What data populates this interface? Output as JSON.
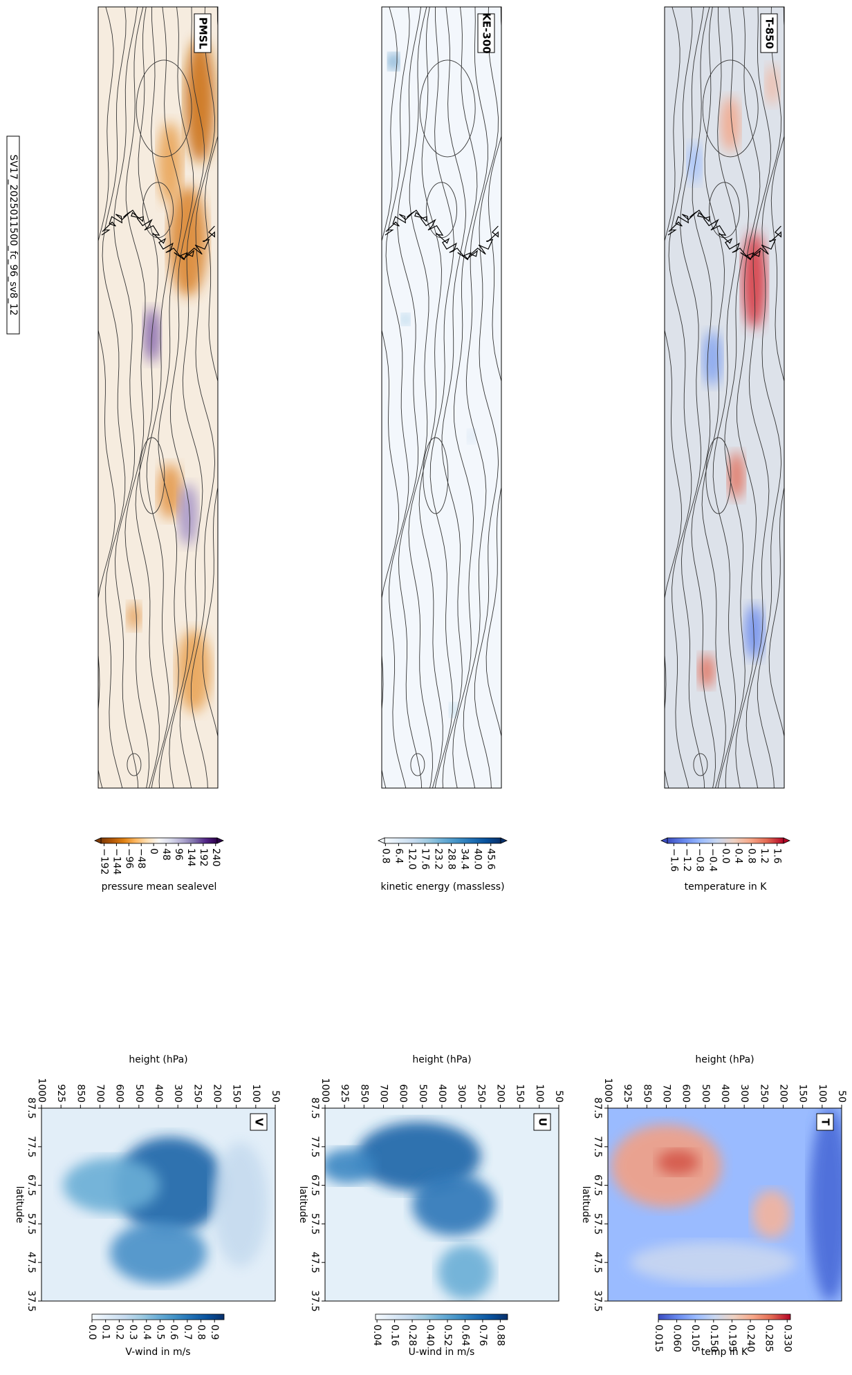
{
  "title": "SV17_2025011500_fc_96_sv8_12",
  "chart_data": [
    {
      "type": "map",
      "label": "PMSL",
      "colorbar": {
        "label": "pressure mean sealevel",
        "extend": "both",
        "lim": [
          -204,
          246
        ],
        "colors": [
          "#7f3b08",
          "#b35806",
          "#e08214",
          "#fdb863",
          "#fee0b6",
          "#f7f7f7",
          "#d8daeb",
          "#b2abd2",
          "#8073ac",
          "#542788",
          "#2d004b"
        ],
        "ticks": [
          {
            "value": -192,
            "label": "−192"
          },
          {
            "value": -144,
            "label": "−144"
          },
          {
            "value": -96,
            "label": "−96"
          },
          {
            "value": -48,
            "label": "−48"
          },
          0,
          48,
          96,
          144,
          192,
          240
        ]
      }
    },
    {
      "type": "map",
      "label": "KE-300",
      "colorbar": {
        "label": "kinetic energy (massless)",
        "extend": "both",
        "lim": [
          0.4,
          49.8
        ],
        "colors": [
          "#f7fbff",
          "#deebf7",
          "#c6dbef",
          "#9ecae1",
          "#6baed6",
          "#4292c6",
          "#2171b5",
          "#08519c",
          "#08306b"
        ],
        "ticks": [
          0.8,
          6.4,
          {
            "value": 12,
            "label": "12.0"
          },
          17.6,
          23.2,
          28.8,
          34.4,
          {
            "value": 40,
            "label": "40.0"
          },
          45.6
        ]
      }
    },
    {
      "type": "map",
      "label": "T-850",
      "colorbar": {
        "label": "temperature in K",
        "extend": "both",
        "lim": [
          -1.8,
          1.8
        ],
        "colors": [
          "#3b4cc0",
          "#6788ee",
          "#9abbff",
          "#c9d7f0",
          "#edd1c2",
          "#f7a889",
          "#e26952",
          "#b40426"
        ],
        "ticks": [
          {
            "value": -1.6,
            "label": "−1.6"
          },
          {
            "value": -1.2,
            "label": "−1.2"
          },
          {
            "value": -0.8,
            "label": "−0.8"
          },
          {
            "value": -0.4,
            "label": "−0.4"
          },
          {
            "value": 0,
            "label": "0.0"
          },
          0.4,
          0.8,
          1.2,
          1.6
        ]
      }
    },
    {
      "type": "contour",
      "label": "V",
      "x_label": "height (hPa)",
      "y_label": "latitude",
      "categories": [
        "1000",
        "925",
        "850",
        "700",
        "600",
        "500",
        "400",
        "300",
        "250",
        "200",
        "150",
        "100",
        "50"
      ],
      "ylim": [
        87.5,
        37.5
      ],
      "yticks": [
        87.5,
        77.5,
        67.5,
        57.5,
        47.5,
        37.5
      ],
      "colorbar": {
        "label": "V-wind in m/s",
        "lim": [
          0,
          0.97
        ],
        "colors": [
          "#f7fbff",
          "#deebf7",
          "#c6dbef",
          "#9ecae1",
          "#6baed6",
          "#4292c6",
          "#2171b5",
          "#08519c",
          "#08306b"
        ],
        "ticks": [
          {
            "value": 0,
            "label": "0.0"
          },
          0.1,
          0.2,
          0.3,
          0.4,
          0.5,
          0.6,
          0.7,
          0.8,
          0.9
        ]
      }
    },
    {
      "type": "contour",
      "label": "U",
      "x_label": "height (hPa)",
      "y_label": "latitude",
      "categories": [
        "1000",
        "925",
        "850",
        "700",
        "600",
        "500",
        "400",
        "300",
        "250",
        "200",
        "150",
        "100",
        "50"
      ],
      "ylim": [
        87.5,
        37.5
      ],
      "yticks": [
        87.5,
        77.5,
        67.5,
        57.5,
        47.5,
        37.5
      ],
      "colorbar": {
        "label": "U-wind in m/s",
        "lim": [
          0.03,
          0.93
        ],
        "colors": [
          "#f7fbff",
          "#deebf7",
          "#c6dbef",
          "#9ecae1",
          "#6baed6",
          "#4292c6",
          "#2171b5",
          "#08519c",
          "#08306b"
        ],
        "ticks": [
          0.04,
          0.16,
          0.28,
          {
            "value": 0.4,
            "label": "0.40"
          },
          0.52,
          0.64,
          0.76,
          0.88
        ]
      }
    },
    {
      "type": "contour",
      "label": "T",
      "x_label": "height (hPa)",
      "y_label": "latitude",
      "categories": [
        "1000",
        "925",
        "850",
        "700",
        "600",
        "500",
        "400",
        "300",
        "250",
        "200",
        "150",
        "100",
        "50"
      ],
      "ylim": [
        87.5,
        37.5
      ],
      "yticks": [
        87.5,
        77.5,
        67.5,
        57.5,
        47.5,
        37.5
      ],
      "colorbar": {
        "label": "temp in K",
        "lim": [
          0.015,
          0.338
        ],
        "colors": [
          "#3b4cc0",
          "#6788ee",
          "#9abbff",
          "#c9d7f0",
          "#edd1c2",
          "#f7a889",
          "#e26952",
          "#b40426"
        ],
        "ticks": [
          0.015,
          {
            "value": 0.06,
            "label": "0.060"
          },
          0.105,
          {
            "value": 0.15,
            "label": "0.150"
          },
          0.195,
          {
            "value": 0.24,
            "label": "0.240"
          },
          0.285,
          {
            "value": 0.33,
            "label": "0.330"
          }
        ]
      }
    }
  ]
}
